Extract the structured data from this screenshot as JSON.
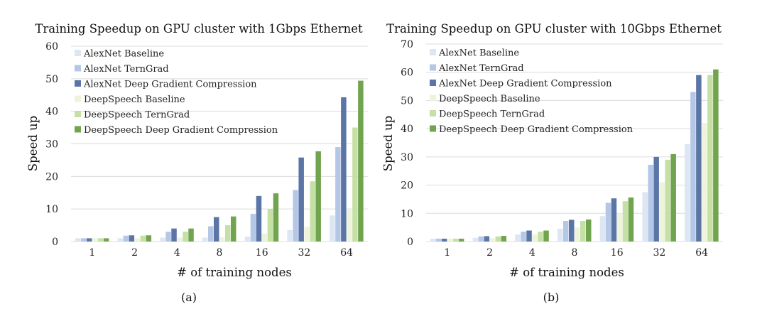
{
  "colors": {
    "alexnet_baseline": "#dde6f3",
    "alexnet_terngrad": "#b5c7e6",
    "alexnet_dgc": "#5b75a6",
    "deepspeech_baseline": "#eef4dc",
    "deepspeech_terngrad": "#c5e0a5",
    "deepspeech_dgc": "#71a44f",
    "gridline": "#dcdcdc"
  },
  "chart_data": [
    {
      "type": "bar",
      "title": "Training Speedup on GPU cluster with 1Gbps Ethernet",
      "xlabel": "# of training nodes",
      "ylabel": "Speed up",
      "caption": "(a)",
      "ylim": [
        0,
        60
      ],
      "yticks": [
        "0",
        "10",
        "20",
        "30",
        "40",
        "50",
        "60"
      ],
      "grid": true,
      "legend_position": "top-left",
      "categories": [
        "1",
        "2",
        "4",
        "8",
        "16",
        "32",
        "64"
      ],
      "series": [
        {
          "name": "AlexNet Baseline",
          "color_key": "alexnet_baseline",
          "values": [
            1,
            1,
            1.2,
            1.2,
            1.5,
            3.5,
            8
          ]
        },
        {
          "name": "AlexNet TernGrad",
          "color_key": "alexnet_terngrad",
          "values": [
            1,
            1.8,
            3,
            4.7,
            8.5,
            15.8,
            29
          ]
        },
        {
          "name": "AlexNet Deep Gradient Compression",
          "color_key": "alexnet_dgc",
          "values": [
            1,
            1.9,
            4,
            7.5,
            14,
            25.8,
            44.3
          ]
        },
        {
          "name": "DeepSpeech Baseline",
          "color_key": "deepspeech_baseline",
          "values": [
            1,
            1,
            1.2,
            1.3,
            2.5,
            4.5,
            10
          ]
        },
        {
          "name": "DeepSpeech TernGrad",
          "color_key": "deepspeech_terngrad",
          "values": [
            1,
            1.8,
            3,
            5,
            10,
            18.5,
            35
          ]
        },
        {
          "name": "DeepSpeech Deep Gradient Compression",
          "color_key": "deepspeech_dgc",
          "values": [
            1,
            1.9,
            4,
            7.7,
            14.8,
            27.7,
            49.4
          ]
        }
      ]
    },
    {
      "type": "bar",
      "title": "Training Speedup on GPU cluster with 10Gbps Ethernet",
      "xlabel": "# of training nodes",
      "ylabel": "Speed up",
      "caption": "(b)",
      "ylim": [
        0,
        70
      ],
      "yticks": [
        "0",
        "10",
        "20",
        "30",
        "40",
        "50",
        "60",
        "70"
      ],
      "grid": true,
      "legend_position": "top-left",
      "categories": [
        "1",
        "2",
        "4",
        "8",
        "16",
        "32",
        "64"
      ],
      "series": [
        {
          "name": "AlexNet Baseline",
          "color_key": "alexnet_baseline",
          "values": [
            1,
            1.3,
            2.5,
            4.5,
            9,
            17.5,
            34.5
          ]
        },
        {
          "name": "AlexNet TernGrad",
          "color_key": "alexnet_terngrad",
          "values": [
            1,
            1.8,
            3.5,
            7.3,
            13.7,
            27.2,
            53
          ]
        },
        {
          "name": "AlexNet Deep Gradient Compression",
          "color_key": "alexnet_dgc",
          "values": [
            1,
            1.9,
            3.9,
            7.7,
            15.3,
            30,
            59
          ]
        },
        {
          "name": "DeepSpeech Baseline",
          "color_key": "deepspeech_baseline",
          "values": [
            1,
            1.2,
            2.5,
            5,
            10,
            21,
            42
          ]
        },
        {
          "name": "DeepSpeech TernGrad",
          "color_key": "deepspeech_terngrad",
          "values": [
            1,
            1.8,
            3.5,
            7.3,
            14.3,
            29,
            59
          ]
        },
        {
          "name": "DeepSpeech Deep Gradient Compression",
          "color_key": "deepspeech_dgc",
          "values": [
            1,
            2,
            3.9,
            7.8,
            15.6,
            31,
            61
          ]
        }
      ]
    }
  ]
}
